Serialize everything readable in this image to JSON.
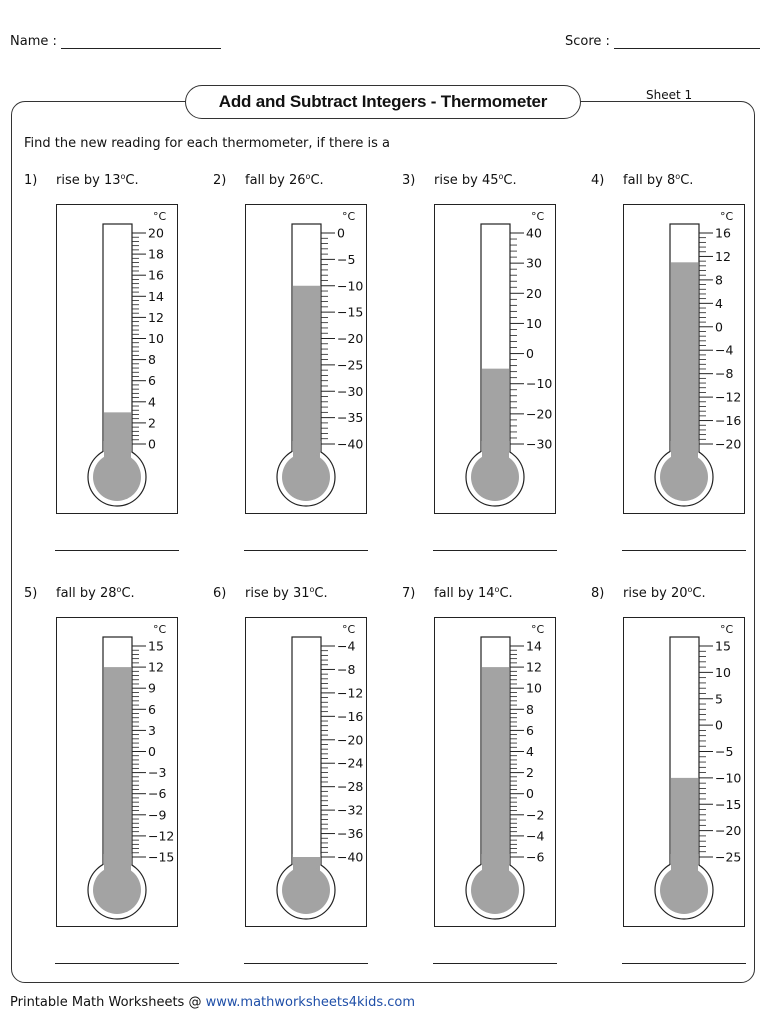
{
  "header": {
    "name_label": "Name :",
    "score_label": "Score :"
  },
  "title": "Add and Subtract Integers - Thermometer",
  "sheet_label": "Sheet 1",
  "instructions": "Find the new reading for each thermometer, if there is a",
  "unit_label": "°C",
  "problems": [
    {
      "num": "1)",
      "verb": "rise by",
      "amount": "13",
      "unit": "C.",
      "reading": 3,
      "ticks": [
        "20",
        "18",
        "16",
        "14",
        "12",
        "10",
        "8",
        "6",
        "4",
        "2",
        "0"
      ]
    },
    {
      "num": "2)",
      "verb": "fall by",
      "amount": "26",
      "unit": "C.",
      "reading": -10,
      "ticks": [
        "0",
        "−5",
        "−10",
        "−15",
        "−20",
        "−25",
        "−30",
        "−35",
        "−40"
      ]
    },
    {
      "num": "3)",
      "verb": "rise by",
      "amount": "45",
      "unit": "C.",
      "reading": -5,
      "ticks": [
        "40",
        "30",
        "20",
        "10",
        "0",
        "−10",
        "−20",
        "−30"
      ]
    },
    {
      "num": "4)",
      "verb": "fall by",
      "amount": "8",
      "unit": "C.",
      "reading": 11,
      "ticks": [
        "16",
        "12",
        "8",
        "4",
        "0",
        "−4",
        "−8",
        "−12",
        "−16",
        "−20"
      ]
    },
    {
      "num": "5)",
      "verb": "fall by",
      "amount": "28",
      "unit": "C.",
      "reading": 12,
      "ticks": [
        "15",
        "12",
        "9",
        "6",
        "3",
        "0",
        "−3",
        "−6",
        "−9",
        "−12",
        "−15"
      ]
    },
    {
      "num": "6)",
      "verb": "rise by",
      "amount": "31",
      "unit": "C.",
      "reading": -40,
      "ticks": [
        "−4",
        "−8",
        "−12",
        "−16",
        "−20",
        "−24",
        "−28",
        "−32",
        "−36",
        "−40"
      ]
    },
    {
      "num": "7)",
      "verb": "fall by",
      "amount": "14",
      "unit": "C.",
      "reading": 12,
      "ticks": [
        "14",
        "12",
        "10",
        "8",
        "6",
        "4",
        "2",
        "0",
        "−2",
        "−4",
        "−6"
      ]
    },
    {
      "num": "8)",
      "verb": "rise by",
      "amount": "20",
      "unit": "C.",
      "reading": -10,
      "ticks": [
        "15",
        "10",
        "5",
        "0",
        "−5",
        "−10",
        "−15",
        "−20",
        "−25"
      ]
    }
  ],
  "footer": {
    "prefix": "Printable Math Worksheets @ ",
    "url": "www.mathworksheets4kids.com"
  }
}
